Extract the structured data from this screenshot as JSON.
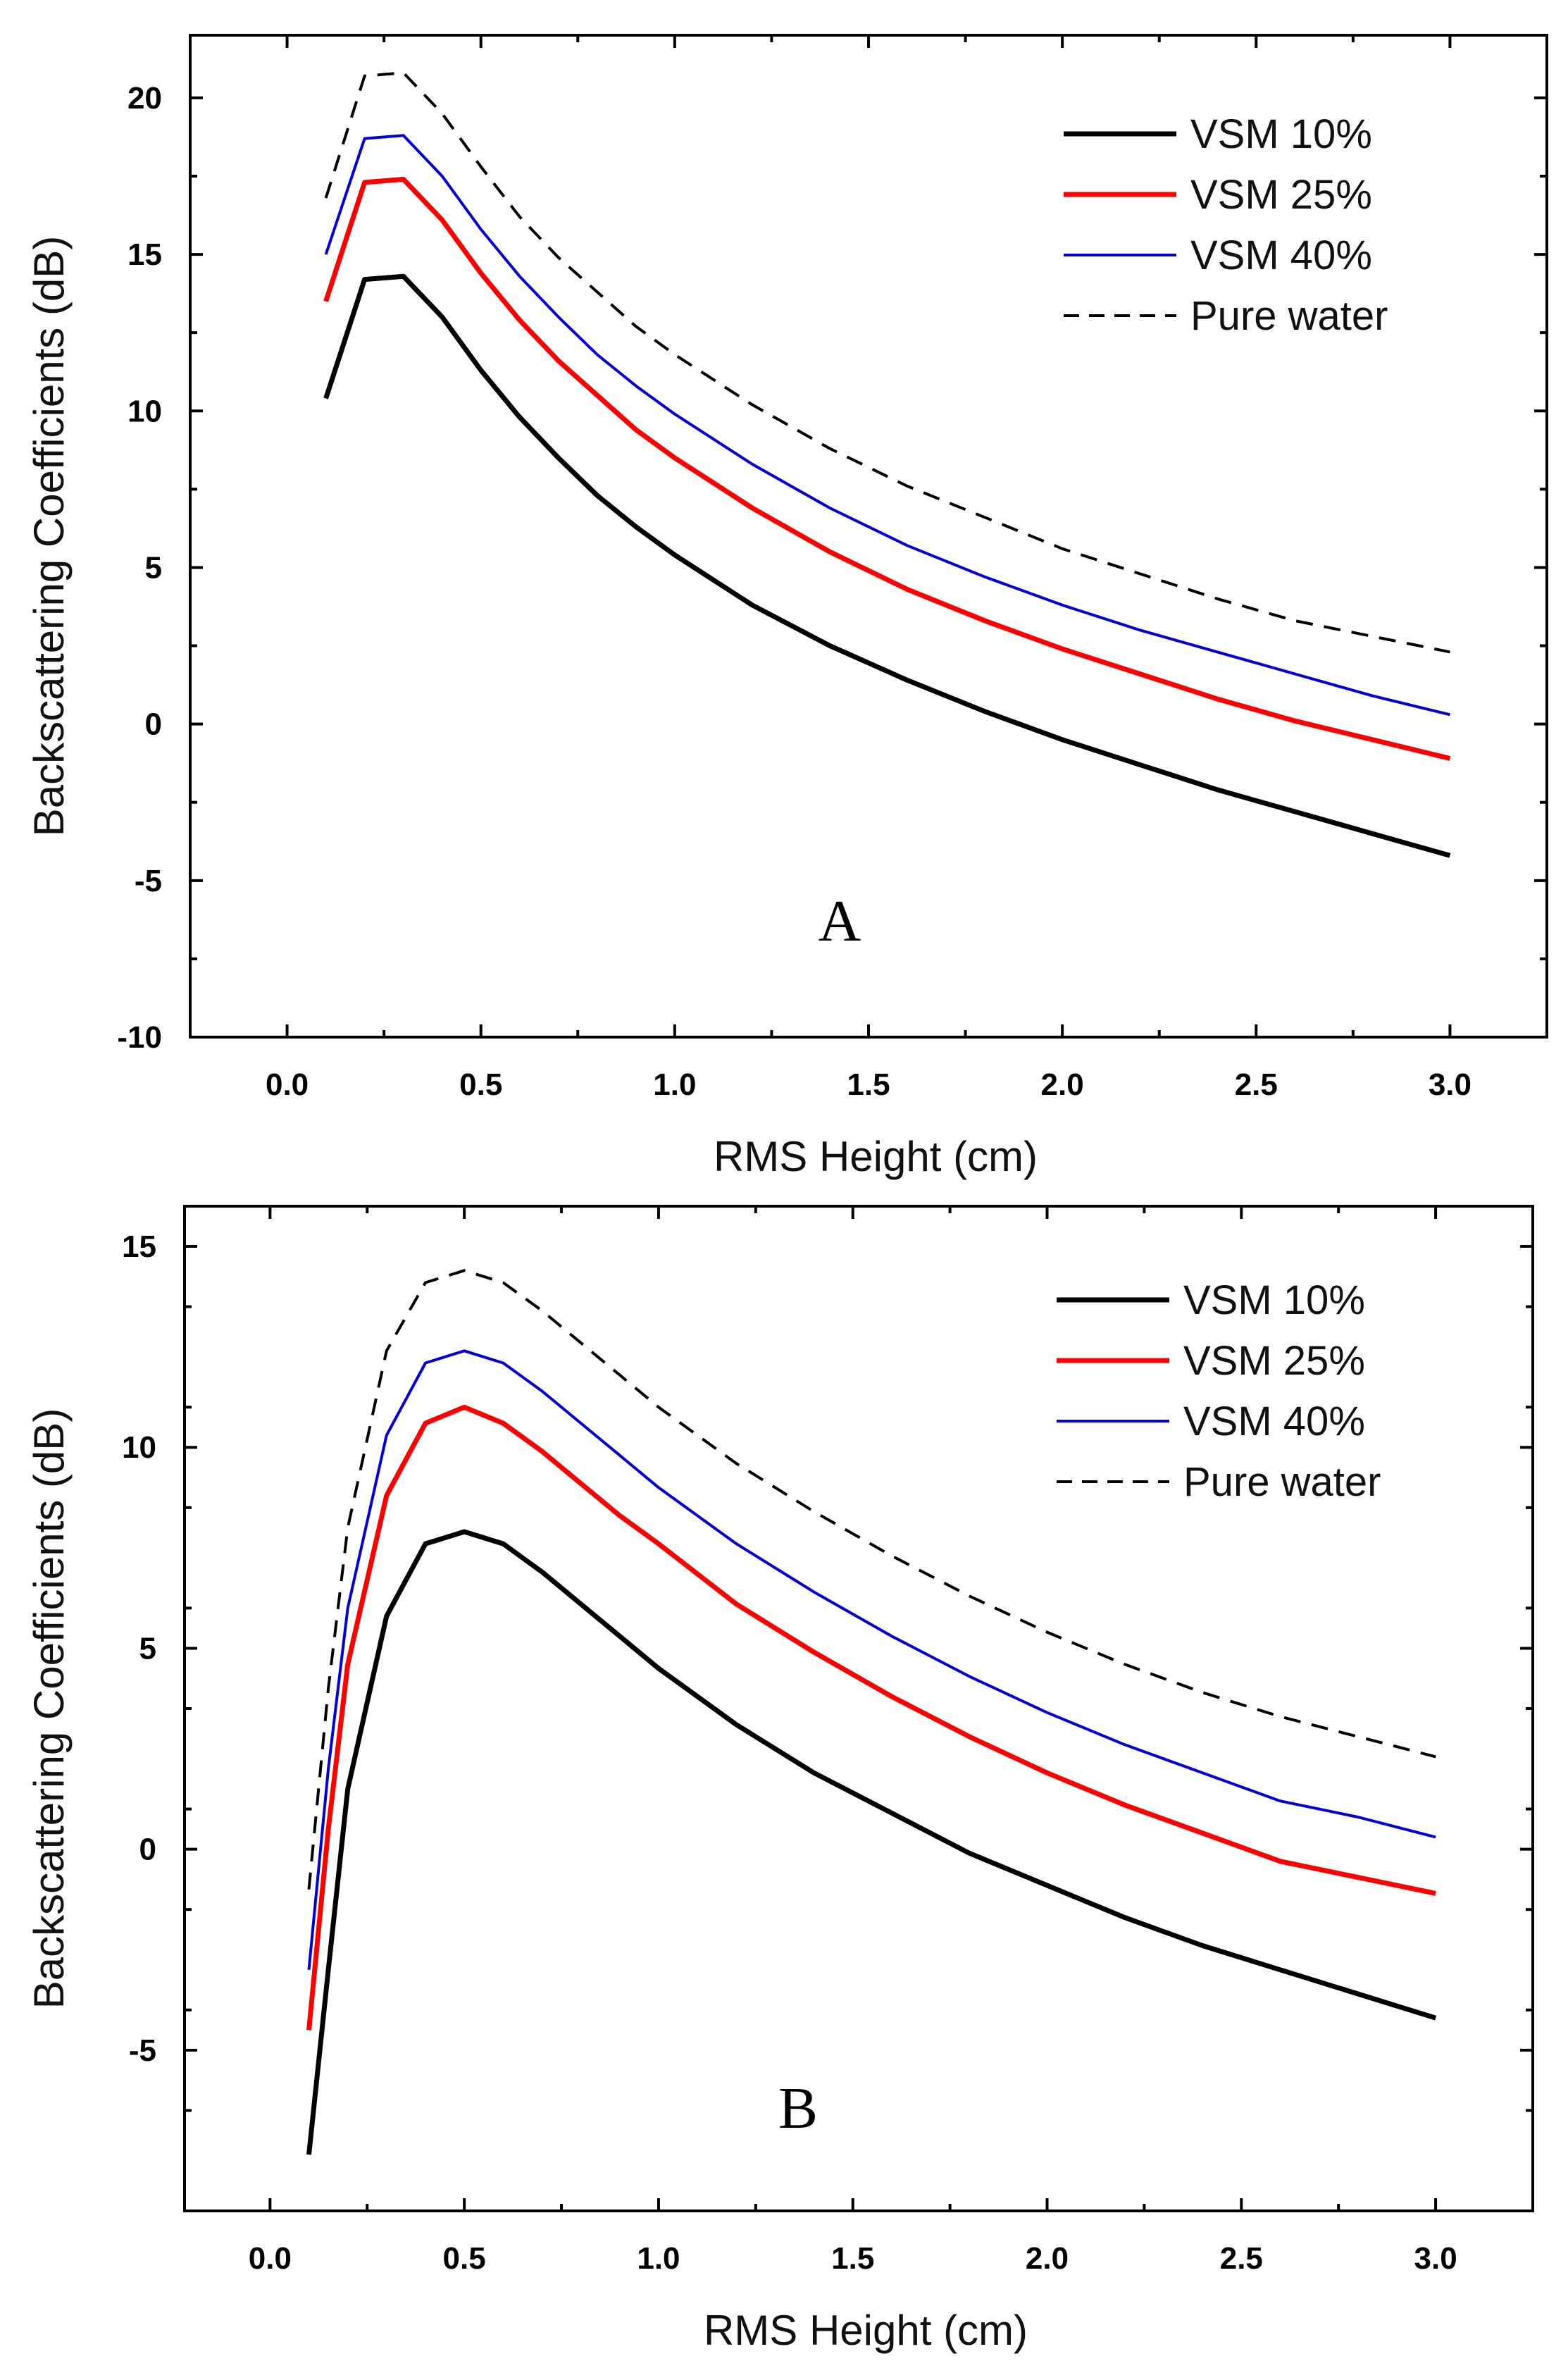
{
  "chart_data": [
    {
      "type": "line",
      "panel_label": "A",
      "xlabel": "RMS Height (cm)",
      "ylabel": "Backscattering Coefficients (dB)",
      "xlim": [
        -0.25,
        3.25
      ],
      "ylim": [
        -10,
        22
      ],
      "xticks": [
        0.0,
        0.5,
        1.0,
        1.5,
        2.0,
        2.5,
        3.0
      ],
      "xtick_labels": [
        "0.0",
        "0.5",
        "1.0",
        "1.5",
        "2.0",
        "2.5",
        "3.0"
      ],
      "yticks": [
        -10,
        -5,
        0,
        5,
        10,
        15,
        20
      ],
      "ytick_labels": [
        "-10",
        "-5",
        "0",
        "5",
        "10",
        "15",
        "20"
      ],
      "legend_position": "top-right",
      "grid": false,
      "x": [
        0.1,
        0.2,
        0.3,
        0.4,
        0.5,
        0.6,
        0.7,
        0.8,
        0.9,
        1.0,
        1.2,
        1.4,
        1.6,
        1.8,
        2.0,
        2.2,
        2.4,
        2.6,
        2.8,
        3.0
      ],
      "series": [
        {
          "name": "VSM 10%",
          "color": "#000000",
          "style": "solid",
          "width": "thick",
          "values": [
            10.4,
            14.2,
            14.3,
            13.0,
            11.3,
            9.8,
            8.5,
            7.3,
            6.3,
            5.4,
            3.8,
            2.5,
            1.4,
            0.4,
            -0.5,
            -1.3,
            -2.1,
            -2.8,
            -3.5,
            -4.2
          ]
        },
        {
          "name": "VSM 25%",
          "color": "#ff0000",
          "style": "solid",
          "width": "thick",
          "values": [
            13.5,
            17.3,
            17.4,
            16.1,
            14.4,
            12.9,
            11.6,
            10.5,
            9.4,
            8.5,
            6.9,
            5.5,
            4.3,
            3.3,
            2.4,
            1.6,
            0.8,
            0.1,
            -0.5,
            -1.1
          ]
        },
        {
          "name": "VSM 40%",
          "color": "#0000dd",
          "style": "solid",
          "width": "thin",
          "values": [
            15.0,
            18.7,
            18.8,
            17.5,
            15.8,
            14.3,
            13.0,
            11.8,
            10.8,
            9.9,
            8.3,
            6.9,
            5.7,
            4.7,
            3.8,
            3.0,
            2.3,
            1.6,
            0.9,
            0.3
          ]
        },
        {
          "name": "Pure water",
          "color": "#000000",
          "style": "dashed",
          "width": "thin",
          "values": [
            16.8,
            20.7,
            20.8,
            19.5,
            17.8,
            16.2,
            14.9,
            13.8,
            12.7,
            11.8,
            10.2,
            8.8,
            7.6,
            6.6,
            5.6,
            4.8,
            4.0,
            3.3,
            2.8,
            2.3
          ]
        }
      ]
    },
    {
      "type": "line",
      "panel_label": "B",
      "xlabel": "RMS Height (cm)",
      "ylabel": "Backscattering Coefficients (dB)",
      "xlim": [
        -0.22,
        3.25
      ],
      "ylim": [
        -9,
        16
      ],
      "xticks": [
        0.0,
        0.5,
        1.0,
        1.5,
        2.0,
        2.5,
        3.0
      ],
      "xtick_labels": [
        "0.0",
        "0.5",
        "1.0",
        "1.5",
        "2.0",
        "2.5",
        "3.0"
      ],
      "yticks": [
        -5,
        0,
        5,
        10,
        15
      ],
      "ytick_labels": [
        "-5",
        "0",
        "5",
        "10",
        "15"
      ],
      "legend_position": "top-right",
      "grid": false,
      "x": [
        0.1,
        0.15,
        0.2,
        0.3,
        0.4,
        0.5,
        0.6,
        0.7,
        0.8,
        0.9,
        1.0,
        1.2,
        1.4,
        1.6,
        1.8,
        2.0,
        2.2,
        2.4,
        2.6,
        2.8,
        3.0
      ],
      "series": [
        {
          "name": "VSM 10%",
          "color": "#000000",
          "style": "solid",
          "width": "thick",
          "values": [
            -7.6,
            -3.0,
            1.5,
            5.8,
            7.6,
            7.9,
            7.6,
            6.9,
            6.1,
            5.3,
            4.5,
            3.1,
            1.9,
            0.9,
            -0.1,
            -0.9,
            -1.7,
            -2.4,
            -3.0,
            -3.6,
            -4.2
          ]
        },
        {
          "name": "VSM 25%",
          "color": "#ff0000",
          "style": "solid",
          "width": "thick",
          "values": [
            -4.5,
            0.5,
            4.6,
            8.8,
            10.6,
            11.0,
            10.6,
            9.9,
            9.1,
            8.3,
            7.6,
            6.1,
            4.9,
            3.8,
            2.8,
            1.9,
            1.1,
            0.4,
            -0.3,
            -0.7,
            -1.1
          ]
        },
        {
          "name": "VSM 40%",
          "color": "#0000dd",
          "style": "solid",
          "width": "thin",
          "values": [
            -3.0,
            2.0,
            6.0,
            10.3,
            12.1,
            12.4,
            12.1,
            11.4,
            10.6,
            9.8,
            9.0,
            7.6,
            6.4,
            5.3,
            4.3,
            3.4,
            2.6,
            1.9,
            1.2,
            0.8,
            0.3
          ]
        },
        {
          "name": "Pure water",
          "color": "#000000",
          "style": "dashed",
          "width": "thin",
          "values": [
            -1.0,
            4.0,
            8.0,
            12.4,
            14.1,
            14.4,
            14.1,
            13.4,
            12.6,
            11.8,
            11.0,
            9.6,
            8.4,
            7.3,
            6.3,
            5.4,
            4.6,
            3.9,
            3.3,
            2.8,
            2.3
          ]
        }
      ]
    }
  ]
}
